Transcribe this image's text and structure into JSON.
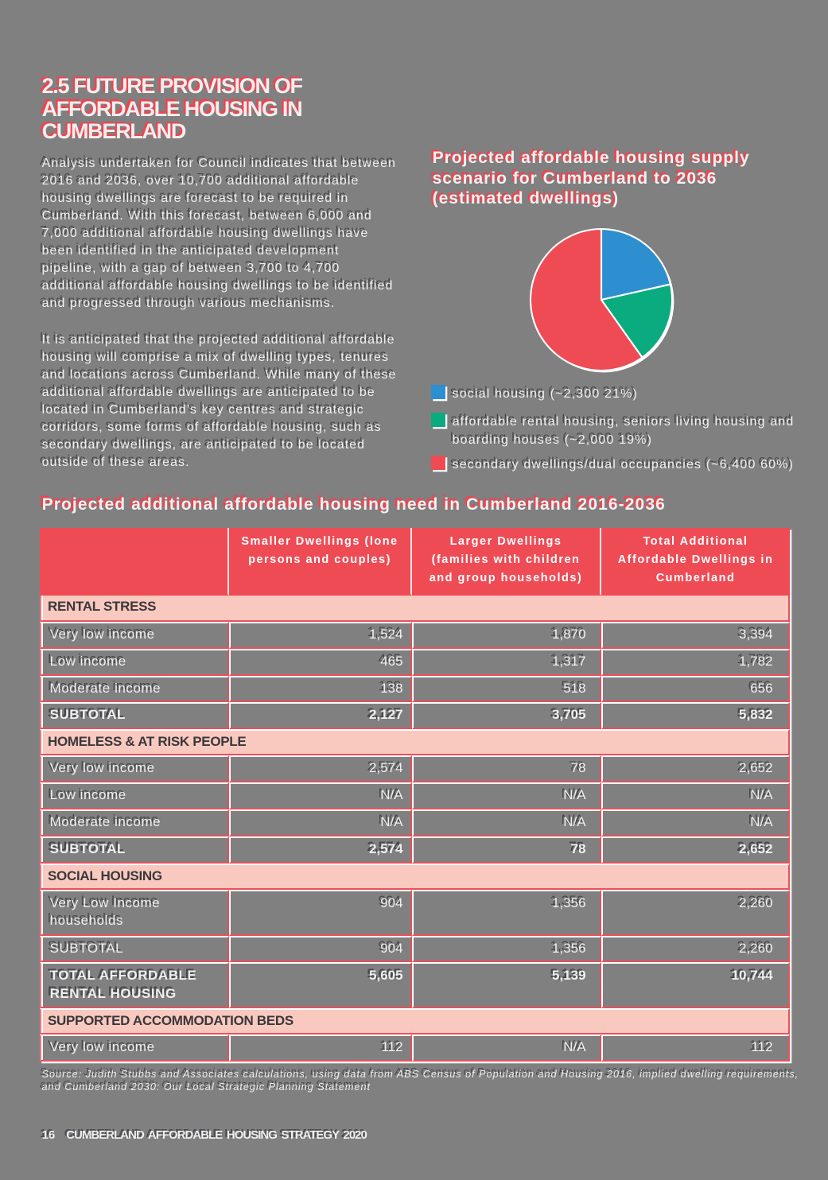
{
  "colors": {
    "background": "#808080",
    "red_text": "#ee4550",
    "red_fill": "#ef4b55",
    "red_line": "#e9505c",
    "pink_band": "#f9c9c0",
    "band_text": "#3a383b",
    "dark_text": "#47484c",
    "white": "#ffffff",
    "pie_blue": "#2e8fd0",
    "pie_green": "#0bab80",
    "pie_red": "#ef4b55"
  },
  "heading": {
    "lines": [
      "2.5 FUTURE PROVISION OF",
      "AFFORDABLE HOUSING IN",
      "CUMBERLAND"
    ]
  },
  "paragraphs": [
    {
      "lines": [
        "Analysis undertaken for Council indicates that between",
        "2016 and 2036, over 10,700 additional affordable",
        "housing dwellings are forecast to be required in",
        "Cumberland. With this forecast, between 6,000 and",
        "7,000 additional affordable housing dwellings have",
        "been identified in the anticipated development",
        "pipeline, with a gap of between 3,700 to 4,700",
        "additional affordable housing dwellings to be identified",
        "and progressed through various mechanisms."
      ]
    },
    {
      "lines": [
        "It is anticipated that the projected additional affordable",
        "housing will comprise a mix of dwelling types, tenures",
        "and locations across Cumberland. While many of these",
        "additional affordable dwellings are anticipated to be",
        "located in Cumberland’s key centres and strategic",
        "corridors, some forms of affordable housing, such as",
        "secondary dwellings, are anticipated to be located",
        "outside of these areas."
      ]
    }
  ],
  "chart": {
    "title_lines": [
      "Projected affordable housing supply",
      "scenario for Cumberland to 2036",
      "(estimated dwellings)"
    ]
  },
  "chart_data": {
    "type": "pie",
    "title": "Projected affordable housing supply scenario for Cumberland to 2036 (estimated dwellings)",
    "slices": [
      {
        "label_lines": [
          "social housing (~2,300 21%)"
        ],
        "label": "social housing",
        "value": 2300,
        "percent": 21,
        "color": "#2e8fd0",
        "name": "social-housing"
      },
      {
        "label_lines": [
          "affordable rental housing, seniors living housing and",
          "boarding houses (~2,000 19%)"
        ],
        "label": "affordable rental housing, seniors living housing and boarding houses",
        "value": 2000,
        "percent": 19,
        "color": "#0bab80",
        "name": "affordable-rental-housing"
      },
      {
        "label_lines": [
          "secondary dwellings/dual occupancies (~6,400 60%)"
        ],
        "label": "secondary dwellings/dual occupancies",
        "value": 6400,
        "percent": 60,
        "color": "#ef4b55",
        "name": "secondary-dwellings"
      }
    ],
    "legend_position": "bottom-left",
    "start_angle_deg": 0,
    "clockwise": true
  },
  "table": {
    "title": "Projected additional affordable housing need in Cumberland 2016-2036",
    "columns": [
      {
        "lines": [
          ""
        ]
      },
      {
        "lines": [
          "Smaller Dwellings (lone",
          "persons and couples)"
        ]
      },
      {
        "lines": [
          "Larger Dwellings",
          "(families with children",
          "and group households)"
        ]
      },
      {
        "lines": [
          "Total Additional",
          "Affordable Dwellings in",
          "Cumberland"
        ]
      }
    ],
    "sections": [
      {
        "label": "RENTAL STRESS",
        "rows": [
          {
            "label_lines": [
              "Very low income"
            ],
            "values": [
              "1,524",
              "1,870",
              "3,394"
            ],
            "bold": false
          },
          {
            "label_lines": [
              "Low income"
            ],
            "values": [
              "465",
              "1,317",
              "1,782"
            ],
            "bold": false
          },
          {
            "label_lines": [
              "Moderate income"
            ],
            "values": [
              "138",
              "518",
              "656"
            ],
            "bold": false
          },
          {
            "label_lines": [
              "SUBTOTAL"
            ],
            "values": [
              "2,127",
              "3,705",
              "5,832"
            ],
            "bold": true
          }
        ]
      },
      {
        "label": "HOMELESS & AT RISK PEOPLE",
        "rows": [
          {
            "label_lines": [
              "Very low income"
            ],
            "values": [
              "2,574",
              "78",
              "2,652"
            ],
            "bold": false
          },
          {
            "label_lines": [
              "Low income"
            ],
            "values": [
              "N/A",
              "N/A",
              "N/A"
            ],
            "bold": false
          },
          {
            "label_lines": [
              "Moderate income"
            ],
            "values": [
              "N/A",
              "N/A",
              "N/A"
            ],
            "bold": false
          },
          {
            "label_lines": [
              "SUBTOTAL"
            ],
            "values": [
              "2,574",
              "78",
              "2,652"
            ],
            "bold": true
          }
        ]
      },
      {
        "label": "SOCIAL HOUSING",
        "rows": [
          {
            "label_lines": [
              "Very Low Income",
              "households"
            ],
            "values": [
              "904",
              "1,356",
              "2,260"
            ],
            "bold": false
          },
          {
            "label_lines": [
              "SUBTOTAL"
            ],
            "values": [
              "904",
              "1,356",
              "2,260"
            ],
            "bold": false
          },
          {
            "label_lines": [
              "TOTAL AFFORDABLE",
              "RENTAL HOUSING"
            ],
            "values": [
              "5,605",
              "5,139",
              "10,744"
            ],
            "bold": true
          }
        ]
      },
      {
        "label": "SUPPORTED ACCOMMODATION BEDS",
        "rows": [
          {
            "label_lines": [
              "Very low income"
            ],
            "values": [
              "112",
              "N/A",
              "112"
            ],
            "bold": false
          }
        ]
      }
    ]
  },
  "source_note": {
    "lines": [
      "Source: Judith Stubbs and Associates calculations, using data from ABS Census of Population and Housing 2016, implied dwelling requirements,",
      "and Cumberland 2030: Our Local Strategic Planning Statement"
    ]
  },
  "footer": {
    "page_number": "16",
    "text": "CUMBERLAND AFFORDABLE HOUSING STRATEGY 2020"
  }
}
